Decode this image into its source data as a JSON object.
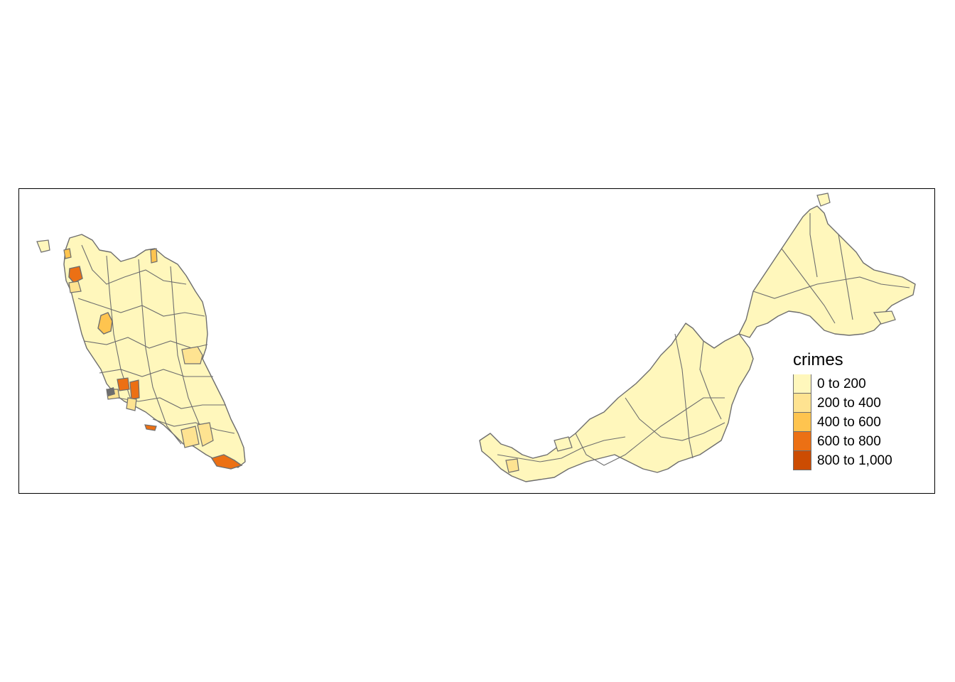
{
  "legend": {
    "title": "crimes",
    "classes": [
      {
        "label": "0 to 200",
        "color": "#FFF7BC"
      },
      {
        "label": "200 to 400",
        "color": "#FEE391"
      },
      {
        "label": "400 to 600",
        "color": "#FEC44F"
      },
      {
        "label": "600 to 800",
        "color": "#EC7014"
      },
      {
        "label": "800 to 1,000",
        "color": "#CC4C02"
      }
    ]
  },
  "colors": {
    "low": "#FFF7BC",
    "mid_low": "#FEE391",
    "mid": "#FEC44F",
    "mid_high": "#EC7014",
    "high": "#CC4C02",
    "border": "#6e6e6e"
  }
}
